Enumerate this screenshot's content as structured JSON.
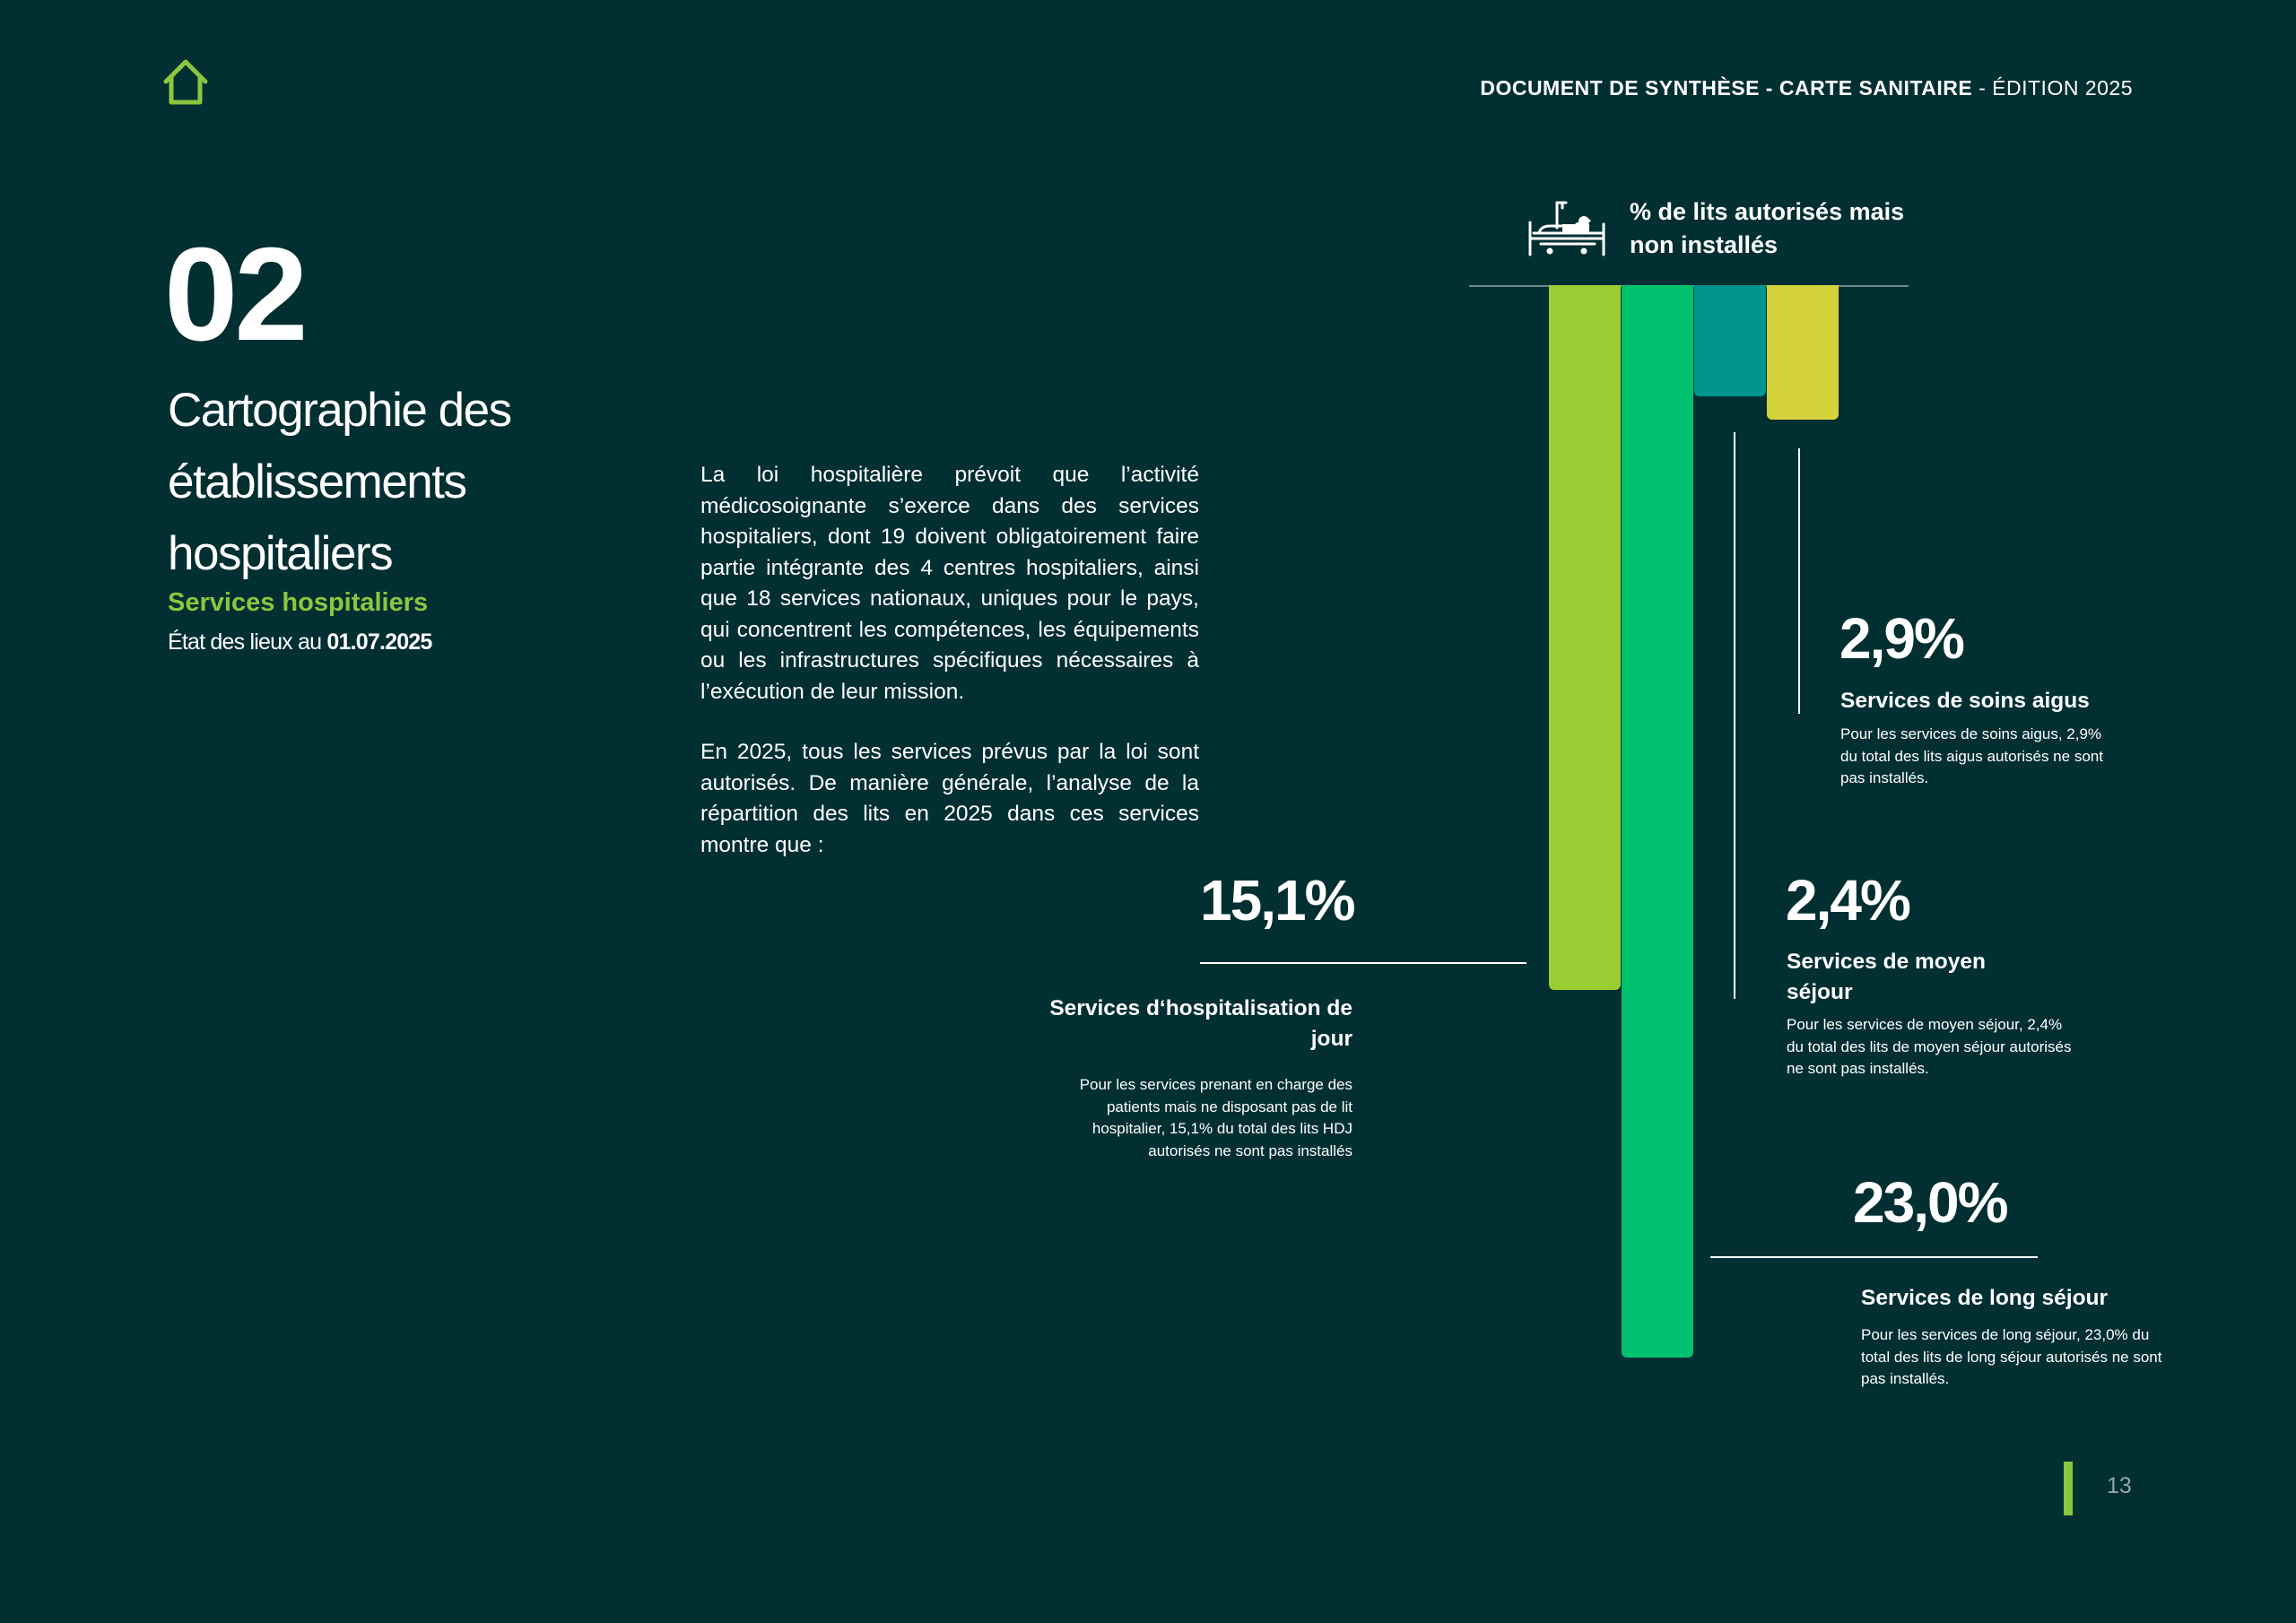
{
  "colors": {
    "background": "#022f32",
    "accent_green": "#8cc63f",
    "bar_hdj": "#9acd32",
    "bar_long": "#00c16e",
    "bar_moyen": "#00968f",
    "bar_aigus": "#d4d33b"
  },
  "header": {
    "home_icon": "house-icon",
    "title_bold": "DOCUMENT DE SYNTHÈSE - CARTE SANITAIRE",
    "title_regular": " - ÉDITION 2025"
  },
  "chapter": {
    "number": "02",
    "title": "Cartographie des établissements hospitaliers",
    "subtitle": "Services hospitaliers",
    "status_prefix": "État des lieux au ",
    "status_date": "01.07.2025"
  },
  "body": {
    "paragraph_1": "La loi hospitalière prévoit que l’activité médicosoignante s’exerce dans des services hospitaliers, dont 19 doivent obligatoirement faire partie intégrante des 4 centres hospitaliers, ainsi que 18 services nationaux, uniques pour le pays, qui concentrent les compétences, les équipements ou les infrastructures spécifiques nécessaires à l’exécution de leur mission.",
    "paragraph_2": "En 2025, tous les services prévus par la loi sont autorisés. De manière générale, l’analyse de la répartition des lits en 2025 dans ces services montre que :"
  },
  "chart_data": {
    "type": "bar",
    "icon": "hospital-bed-icon",
    "legend": "% de lits autorisés mais non installés",
    "unit": "%",
    "categories": [
      "Services d‘hospitalisation de jour",
      "Services de long séjour",
      "Services de moyen séjour",
      "Services de soins aigus"
    ],
    "values": [
      15.1,
      23.0,
      2.4,
      2.9
    ],
    "ylim": [
      0,
      23.0
    ],
    "orientation": "downward",
    "items": [
      {
        "key": "hdj",
        "value": 15.1,
        "display_value": "15,1%",
        "label": "Services d‘hospitalisation de jour",
        "description": "Pour les services prenant en charge des patients mais ne disposant pas de lit hospitalier, 15,1% du total des lits HDJ autorisés ne sont pas installés"
      },
      {
        "key": "long",
        "value": 23.0,
        "display_value": "23,0%",
        "label": "Services de long séjour",
        "description": "Pour les services de long séjour, 23,0% du total des lits de long séjour autorisés ne sont pas installés."
      },
      {
        "key": "moyen",
        "value": 2.4,
        "display_value": "2,4%",
        "label": "Services de moyen séjour",
        "description": "Pour les services de moyen séjour, 2,4% du total des lits de moyen séjour autorisés ne sont pas installés."
      },
      {
        "key": "aigus",
        "value": 2.9,
        "display_value": "2,9%",
        "label": "Services de soins aigus",
        "description": "Pour les services de soins aigus, 2,9% du total des lits aigus autorisés ne sont pas installés."
      }
    ]
  },
  "footer": {
    "page_number": "13"
  }
}
